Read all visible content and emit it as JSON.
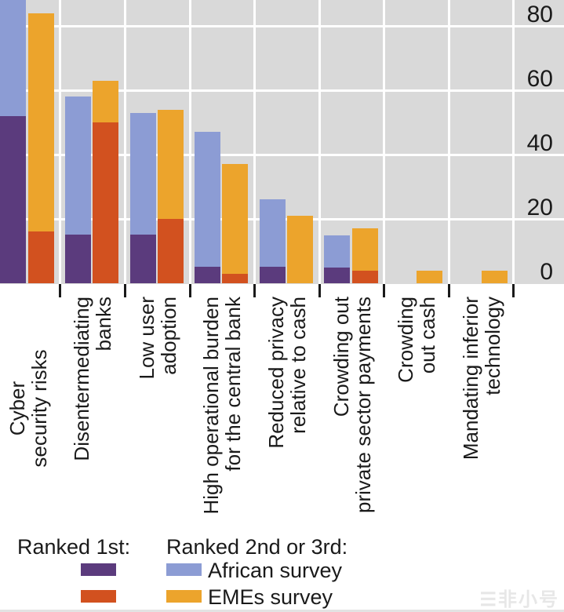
{
  "chart_data": {
    "type": "bar",
    "subtype": "grouped-stacked",
    "title": "",
    "categories": [
      "Cyber security risks",
      "Disentermediating banks",
      "Low user adoption",
      "High operational burden for the central bank",
      "Reduced privacy relative to cash",
      "Crowding out private sector payments",
      "Crowding out cash",
      "Mandating inferior technology"
    ],
    "category_lines": [
      [
        "Cyber",
        "security risks"
      ],
      [
        "Disentermediating",
        "banks"
      ],
      [
        "Low user",
        "adoption"
      ],
      [
        "High operational burden",
        "for the central bank"
      ],
      [
        "Reduced privacy",
        "relative to cash"
      ],
      [
        "Crowding out",
        "private sector payments"
      ],
      [
        "Crowding",
        "out cash"
      ],
      [
        "Mandating inferior",
        "technology"
      ]
    ],
    "series": [
      {
        "name": "African survey - Ranked 1st",
        "color": "#5b3b7d",
        "values": [
          52,
          15,
          15,
          5,
          5,
          5,
          0,
          0
        ]
      },
      {
        "name": "African survey - Ranked 2nd or 3rd",
        "color": "#8c9cd4",
        "values": [
          41,
          43,
          38,
          42,
          21,
          10,
          0,
          0
        ]
      },
      {
        "name": "EMEs survey - Ranked 1st",
        "color": "#d2511f",
        "values": [
          16,
          50,
          20,
          3,
          0,
          4,
          0,
          0
        ]
      },
      {
        "name": "EMEs survey - Ranked 2nd or 3rd",
        "color": "#eca42c",
        "values": [
          68,
          13,
          34,
          34,
          21,
          13,
          4,
          4
        ]
      }
    ],
    "totals": {
      "african": [
        93,
        58,
        53,
        47,
        26,
        15,
        0,
        0
      ],
      "emes": [
        84,
        63,
        54,
        37,
        21,
        17,
        4,
        4
      ]
    },
    "axis": {
      "y_ticks": [
        0,
        20,
        40,
        60,
        80
      ],
      "y_max_visible": 88,
      "top_cropped": true,
      "grid": true,
      "grid_color": "#ffffff",
      "plot_bg": "#d9d9d9",
      "tick_label_side": "right"
    },
    "legend_position": "bottom"
  },
  "legend": {
    "ranked_first_label": "Ranked 1st:",
    "ranked_second_label": "Ranked 2nd or 3rd:",
    "items": [
      {
        "label": "African survey",
        "first_color": "#5b3b7d",
        "second_color": "#8c9cd4"
      },
      {
        "label": "EMEs survey",
        "first_color": "#d2511f",
        "second_color": "#eca42c"
      }
    ]
  },
  "watermark": {
    "logo": "☰",
    "text": "非小号"
  }
}
